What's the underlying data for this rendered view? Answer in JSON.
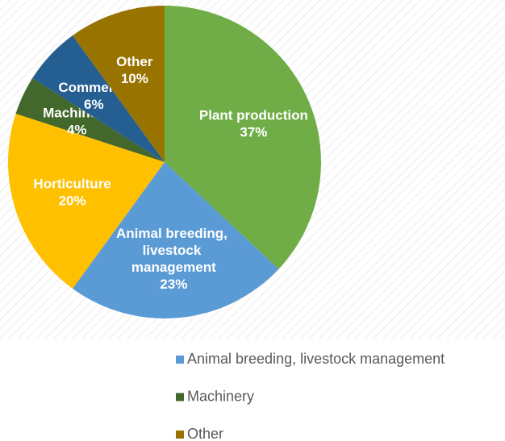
{
  "chart_data": {
    "type": "pie",
    "categories": [
      "Plant production",
      "Animal breeding, livestock management",
      "Horticulture",
      "Machinery",
      "Commerce",
      "Other"
    ],
    "values": [
      37,
      23,
      20,
      4,
      6,
      10
    ],
    "value_labels": [
      "37%",
      "23%",
      "20%",
      "4%",
      "6%",
      "10%"
    ],
    "colors": [
      "#70ad47",
      "#5b9bd5",
      "#ffc000",
      "#43682b",
      "#255e91",
      "#997300"
    ]
  }
}
